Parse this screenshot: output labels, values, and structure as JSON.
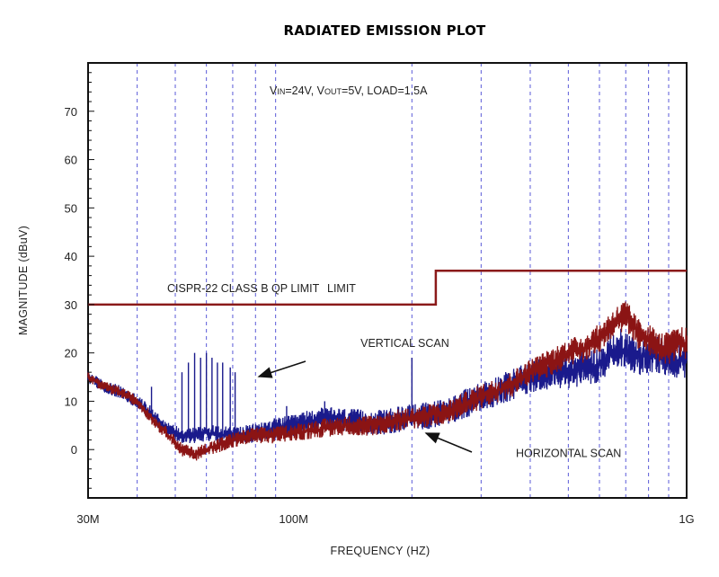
{
  "chart_data": {
    "type": "line",
    "title": "RADIATED EMISSION PLOT",
    "subtitle_prefix_1": "V",
    "subtitle_sub_1": "IN",
    "subtitle_mid": "=24V, V",
    "subtitle_sub_2": "OUT",
    "subtitle_suffix": "=5V, LOAD=1.5A",
    "xlabel": "FREQUENCY (HZ)",
    "ylabel": "MAGNITUDE (dBuV)",
    "x_scale": "log",
    "xlim_hz": [
      30000000,
      1000000000
    ],
    "ylim": [
      -10,
      80
    ],
    "y_ticks": [
      0,
      10,
      20,
      30,
      40,
      50,
      60,
      70
    ],
    "y_tick_labels": [
      "0",
      "10",
      "20",
      "30",
      "40",
      "50",
      "60",
      "70"
    ],
    "x_ticks_hz": [
      30000000,
      100000000,
      1000000000
    ],
    "x_tick_labels": [
      "30M",
      "100M",
      "1G"
    ],
    "grid": {
      "vertical": true,
      "horizontal": false,
      "style": "dashed",
      "color": "#5a5ad8",
      "x_hz": [
        40000000,
        50000000,
        60000000,
        70000000,
        80000000,
        90000000,
        200000000,
        300000000,
        400000000,
        500000000,
        600000000,
        700000000,
        800000000,
        900000000
      ]
    },
    "colors": {
      "limit": "#8b1a1a",
      "vertical": "#1a1a8c",
      "horizontal": "#8b1414"
    },
    "limit": {
      "label": "CISPR-22 CLASS B QP LIMIT",
      "label_2": "LIMIT",
      "points": [
        [
          30000000,
          30
        ],
        [
          230000000,
          30
        ],
        [
          230000000,
          37
        ],
        [
          1000000000,
          37
        ]
      ]
    },
    "series": [
      {
        "name": "VERTICAL SCAN",
        "x_hz": [
          30000000,
          33000000,
          36000000,
          40000000,
          44000000,
          48000000,
          52000000,
          56000000,
          60000000,
          65000000,
          70000000,
          75000000,
          80000000,
          85000000,
          90000000,
          100000000,
          110000000,
          120000000,
          140000000,
          160000000,
          180000000,
          200000000,
          220000000,
          250000000,
          300000000,
          350000000,
          400000000,
          450000000,
          500000000,
          550000000,
          600000000,
          650000000,
          700000000,
          750000000,
          800000000,
          850000000,
          900000000,
          950000000,
          1000000000
        ],
        "values": [
          15,
          13,
          12,
          10,
          7,
          4,
          3,
          3,
          3.5,
          3,
          3,
          3,
          3.5,
          4,
          4.5,
          5,
          6,
          6.5,
          6,
          5.5,
          6,
          7,
          7,
          8,
          11,
          13,
          15,
          16,
          16,
          17,
          17.5,
          20,
          21,
          19,
          19.5,
          19.5,
          19,
          18.5,
          19
        ],
        "peaks": [
          [
            43500000,
            13
          ],
          [
            52000000,
            16
          ],
          [
            54000000,
            18
          ],
          [
            56000000,
            20
          ],
          [
            58000000,
            19
          ],
          [
            60000000,
            20
          ],
          [
            62000000,
            19
          ],
          [
            64000000,
            18
          ],
          [
            66000000,
            18
          ],
          [
            69000000,
            17
          ],
          [
            71000000,
            16
          ],
          [
            96000000,
            9
          ],
          [
            120000000,
            10
          ],
          [
            200000000,
            19
          ],
          [
            640000000,
            24
          ],
          [
            680000000,
            25
          ],
          [
            700000000,
            24
          ]
        ]
      },
      {
        "name": "HORIZONTAL SCAN",
        "x_hz": [
          30000000,
          33000000,
          36000000,
          40000000,
          44000000,
          48000000,
          52000000,
          56000000,
          60000000,
          65000000,
          70000000,
          75000000,
          80000000,
          85000000,
          90000000,
          100000000,
          110000000,
          120000000,
          140000000,
          160000000,
          180000000,
          200000000,
          220000000,
          250000000,
          300000000,
          350000000,
          400000000,
          450000000,
          500000000,
          550000000,
          600000000,
          650000000,
          700000000,
          750000000,
          800000000,
          850000000,
          900000000,
          950000000,
          1000000000
        ],
        "values": [
          15,
          13,
          12,
          10,
          6,
          3,
          0,
          -1,
          0,
          1,
          2,
          2.5,
          3,
          3,
          3,
          3.5,
          4,
          4.5,
          5,
          5,
          6,
          6.5,
          7,
          8,
          11,
          13,
          16,
          18,
          20,
          21,
          23,
          26,
          28,
          24,
          23,
          21,
          21,
          22,
          22
        ]
      }
    ],
    "annotations": [
      {
        "text": "VERTICAL SCAN",
        "x_hz": 148000000,
        "y": 22
      },
      {
        "text": "HORIZONTAL SCAN",
        "x_hz": 400000000,
        "y": -1
      }
    ]
  }
}
